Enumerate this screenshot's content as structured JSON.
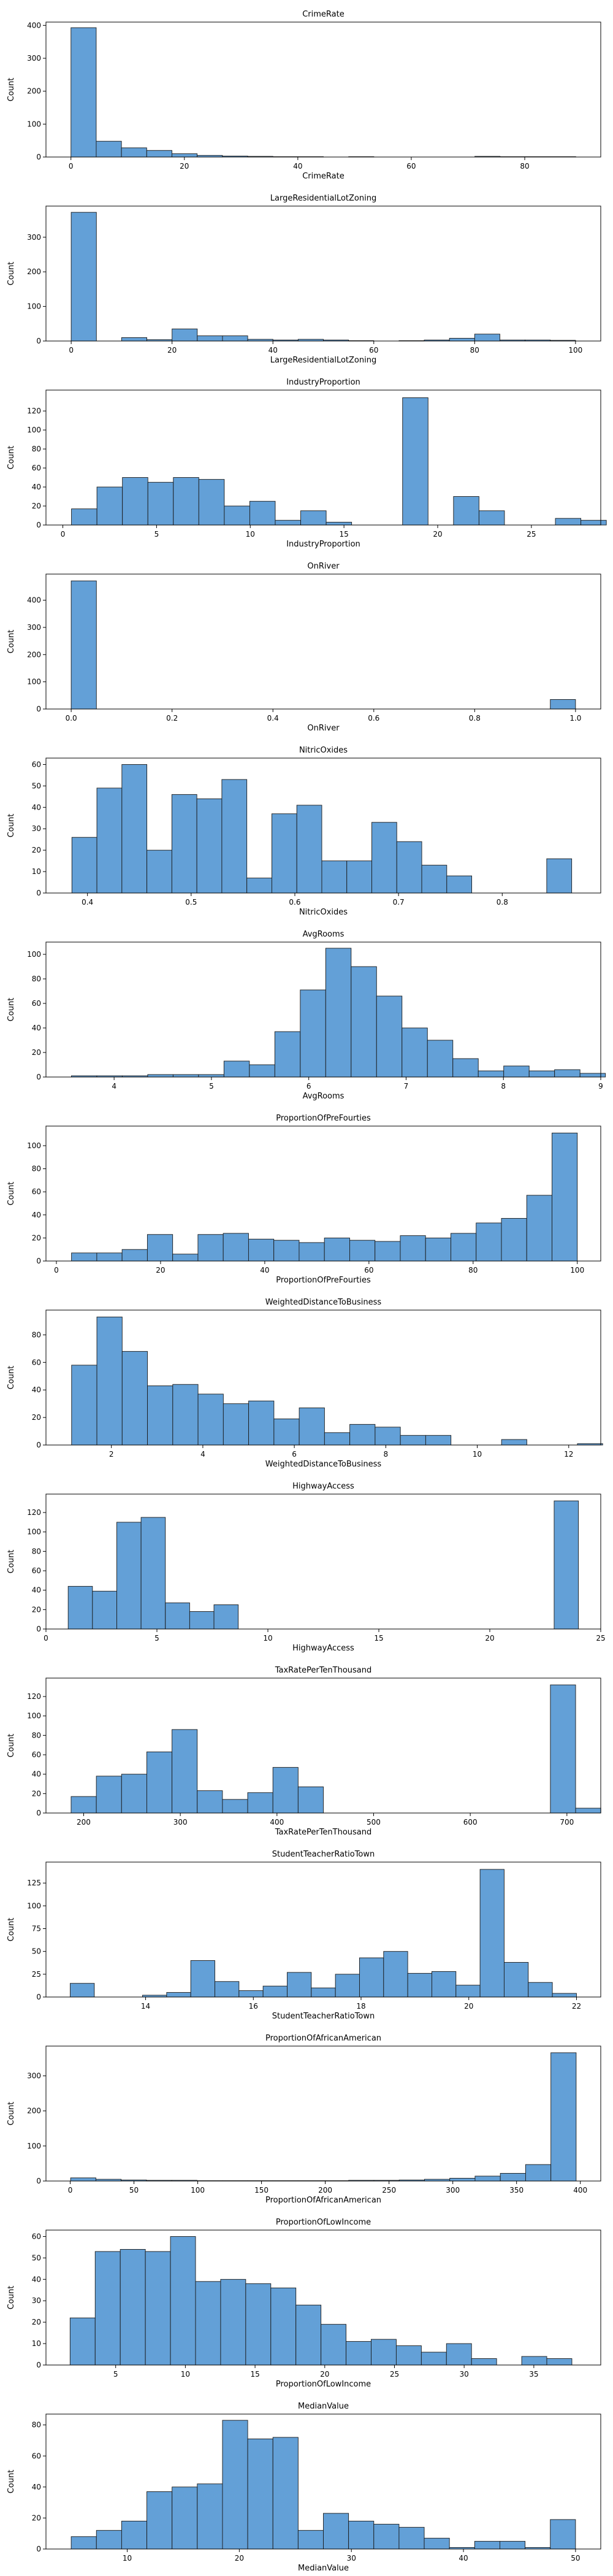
{
  "chart_data": [
    {
      "type": "bar",
      "title": "CrimeRate",
      "xlabel": "CrimeRate",
      "ylabel": "Count",
      "xlim": [
        -4.4,
        93.4
      ],
      "ylim": [
        0,
        410
      ],
      "xticks": [
        0,
        20,
        40,
        60,
        80
      ],
      "yticks": [
        0,
        100,
        200,
        300,
        400
      ],
      "bin_start": 0.006,
      "bin_width": 4.45,
      "values": [
        393,
        48,
        28,
        20,
        10,
        5,
        3,
        2,
        1,
        1,
        0,
        1,
        0,
        0,
        0,
        0,
        2,
        1,
        1,
        1
      ]
    },
    {
      "type": "bar",
      "title": "LargeResidentialLotZoning",
      "xlabel": "LargeResidentialLotZoning",
      "ylabel": "Count",
      "xlim": [
        -5,
        105
      ],
      "ylim": [
        0,
        390
      ],
      "xticks": [
        0,
        20,
        40,
        60,
        80,
        100
      ],
      "yticks": [
        0,
        100,
        200,
        300
      ],
      "bin_start": 0,
      "bin_width": 5,
      "values": [
        372,
        0,
        10,
        4,
        35,
        15,
        15,
        5,
        3,
        5,
        3,
        1,
        0,
        1,
        3,
        8,
        20,
        3,
        3,
        2
      ]
    },
    {
      "type": "bar",
      "title": "IndustryProportion",
      "xlabel": "IndustryProportion",
      "ylabel": "Count",
      "xlim": [
        -0.9,
        28.7
      ],
      "ylim": [
        0,
        142
      ],
      "xticks": [
        0,
        5,
        10,
        15,
        20,
        25
      ],
      "yticks": [
        0,
        20,
        40,
        60,
        80,
        100,
        120
      ],
      "bin_start": 0.46,
      "bin_width": 1.359,
      "values": [
        17,
        40,
        50,
        45,
        50,
        48,
        20,
        25,
        5,
        15,
        3,
        0,
        0,
        134,
        0,
        30,
        15,
        0,
        0,
        7,
        5
      ]
    },
    {
      "type": "bar",
      "title": "OnRiver",
      "xlabel": "OnRiver",
      "ylabel": "Count",
      "xlim": [
        -0.05,
        1.05
      ],
      "ylim": [
        0,
        496
      ],
      "xticks": [
        0.0,
        0.2,
        0.4,
        0.6,
        0.8,
        1.0
      ],
      "xtick_labels": [
        "0.0",
        "0.2",
        "0.4",
        "0.6",
        "0.8",
        "1.0"
      ],
      "yticks": [
        0,
        100,
        200,
        300,
        400
      ],
      "bin_start": 0,
      "bin_width": 0.05,
      "values": [
        471,
        0,
        0,
        0,
        0,
        0,
        0,
        0,
        0,
        0,
        0,
        0,
        0,
        0,
        0,
        0,
        0,
        0,
        0,
        35
      ]
    },
    {
      "type": "bar",
      "title": "NitricOxides",
      "xlabel": "NitricOxides",
      "ylabel": "Count",
      "xlim": [
        0.36,
        0.895
      ],
      "ylim": [
        0,
        63
      ],
      "xticks": [
        0.4,
        0.5,
        0.6,
        0.7,
        0.8
      ],
      "xtick_labels": [
        "0.4",
        "0.5",
        "0.6",
        "0.7",
        "0.8"
      ],
      "yticks": [
        0,
        10,
        20,
        30,
        40,
        50,
        60
      ],
      "bin_start": 0.385,
      "bin_width": 0.0241,
      "values": [
        26,
        49,
        60,
        20,
        46,
        44,
        53,
        7,
        37,
        41,
        15,
        15,
        33,
        24,
        13,
        8,
        0,
        0,
        0,
        16
      ]
    },
    {
      "type": "bar",
      "title": "AvgRooms",
      "xlabel": "AvgRooms",
      "ylabel": "Count",
      "xlim": [
        3.3,
        9.0
      ],
      "ylim": [
        0,
        110
      ],
      "xticks": [
        4,
        5,
        6,
        7,
        8,
        9
      ],
      "yticks": [
        0,
        20,
        40,
        60,
        80,
        100
      ],
      "bin_start": 3.561,
      "bin_width": 0.2613,
      "values": [
        1,
        1,
        1,
        2,
        2,
        2,
        13,
        10,
        37,
        71,
        105,
        90,
        66,
        40,
        30,
        15,
        5,
        9,
        5,
        6,
        3
      ]
    },
    {
      "type": "bar",
      "title": "ProportionOfPreFourties",
      "xlabel": "ProportionOfPreFourties",
      "ylabel": "Count",
      "xlim": [
        -2,
        104.5
      ],
      "ylim": [
        0,
        117
      ],
      "xticks": [
        0,
        20,
        40,
        60,
        80,
        100
      ],
      "yticks": [
        0,
        20,
        40,
        60,
        80,
        100
      ],
      "bin_start": 2.9,
      "bin_width": 4.855,
      "values": [
        7,
        7,
        10,
        23,
        6,
        23,
        24,
        19,
        18,
        16,
        20,
        18,
        17,
        22,
        20,
        24,
        33,
        37,
        57,
        111
      ]
    },
    {
      "type": "bar",
      "title": "WeightedDistanceToBusiness",
      "xlabel": "WeightedDistanceToBusiness",
      "ylabel": "Count",
      "xlim": [
        0.57,
        12.7
      ],
      "ylim": [
        0,
        98
      ],
      "xticks": [
        2,
        4,
        6,
        8,
        10,
        12
      ],
      "yticks": [
        0,
        20,
        40,
        60,
        80
      ],
      "bin_start": 1.13,
      "bin_width": 0.553,
      "values": [
        58,
        93,
        68,
        43,
        44,
        37,
        30,
        32,
        19,
        27,
        9,
        15,
        13,
        7,
        7,
        0,
        0,
        4,
        0,
        0,
        1
      ]
    },
    {
      "type": "bar",
      "title": "HighwayAccess",
      "xlabel": "HighwayAccess",
      "ylabel": "Count",
      "xlim": [
        0,
        25
      ],
      "ylim": [
        0,
        139
      ],
      "xticks": [
        0,
        5,
        10,
        15,
        20,
        25
      ],
      "yticks": [
        0,
        20,
        40,
        60,
        80,
        100,
        120
      ],
      "bin_start": 1,
      "bin_width": 1.095,
      "values": [
        44,
        39,
        110,
        115,
        27,
        18,
        25,
        0,
        0,
        0,
        0,
        0,
        0,
        0,
        0,
        0,
        0,
        0,
        0,
        0,
        132
      ]
    },
    {
      "type": "bar",
      "title": "TaxRatePerTenThousand",
      "xlabel": "TaxRatePerTenThousand",
      "ylabel": "Count",
      "xlim": [
        161,
        735
      ],
      "ylim": [
        0,
        139
      ],
      "xticks": [
        200,
        300,
        400,
        500,
        600,
        700
      ],
      "yticks": [
        0,
        20,
        40,
        60,
        80,
        100,
        120
      ],
      "bin_start": 187,
      "bin_width": 26.1,
      "values": [
        17,
        38,
        40,
        63,
        86,
        23,
        14,
        21,
        47,
        27,
        0,
        0,
        0,
        0,
        0,
        0,
        0,
        0,
        0,
        132,
        5
      ]
    },
    {
      "type": "bar",
      "title": "StudentTeacherRatioTown",
      "xlabel": "StudentTeacherRatioTown",
      "ylabel": "Count",
      "xlim": [
        12.15,
        22.45
      ],
      "ylim": [
        0,
        148
      ],
      "xticks": [
        14,
        16,
        18,
        20,
        22
      ],
      "yticks": [
        0,
        25,
        50,
        75,
        100,
        125
      ],
      "bin_start": 12.6,
      "bin_width": 0.4476,
      "values": [
        15,
        0,
        0,
        2,
        5,
        40,
        17,
        7,
        12,
        27,
        10,
        25,
        43,
        50,
        26,
        28,
        13,
        140,
        38,
        16,
        4
      ]
    },
    {
      "type": "bar",
      "title": "ProportionOfAfricanAmerican",
      "xlabel": "ProportionOfAfricanAmerican",
      "ylabel": "Count",
      "xlim": [
        -19,
        416
      ],
      "ylim": [
        0,
        385
      ],
      "xticks": [
        0,
        50,
        100,
        150,
        200,
        250,
        300,
        350,
        400
      ],
      "yticks": [
        0,
        100,
        200,
        300
      ],
      "bin_start": 0.32,
      "bin_width": 19.82,
      "values": [
        9,
        5,
        3,
        2,
        2,
        1,
        1,
        1,
        1,
        1,
        1,
        2,
        2,
        3,
        5,
        8,
        14,
        22,
        47,
        366
      ]
    },
    {
      "type": "bar",
      "title": "ProportionOfLowIncome",
      "xlabel": "ProportionOfLowIncome",
      "ylabel": "Count",
      "xlim": [
        0,
        39.8
      ],
      "ylim": [
        0,
        63
      ],
      "xticks": [
        5,
        10,
        15,
        20,
        25,
        30,
        35
      ],
      "yticks": [
        0,
        10,
        20,
        30,
        40,
        50,
        60
      ],
      "bin_start": 1.73,
      "bin_width": 1.8,
      "values": [
        22,
        53,
        54,
        53,
        60,
        39,
        40,
        38,
        36,
        28,
        19,
        11,
        12,
        9,
        6,
        10,
        3,
        0,
        4,
        3
      ]
    },
    {
      "type": "bar",
      "title": "MedianValue",
      "xlabel": "MedianValue",
      "ylabel": "Count",
      "xlim": [
        2.75,
        52.25
      ],
      "ylim": [
        0,
        87
      ],
      "xticks": [
        10,
        20,
        30,
        40,
        50
      ],
      "yticks": [
        0,
        20,
        40,
        60,
        80
      ],
      "bin_start": 5,
      "bin_width": 2.25,
      "values": [
        8,
        12,
        18,
        37,
        40,
        42,
        83,
        71,
        72,
        12,
        23,
        18,
        16,
        14,
        7,
        1,
        5,
        5,
        1,
        19
      ]
    }
  ]
}
